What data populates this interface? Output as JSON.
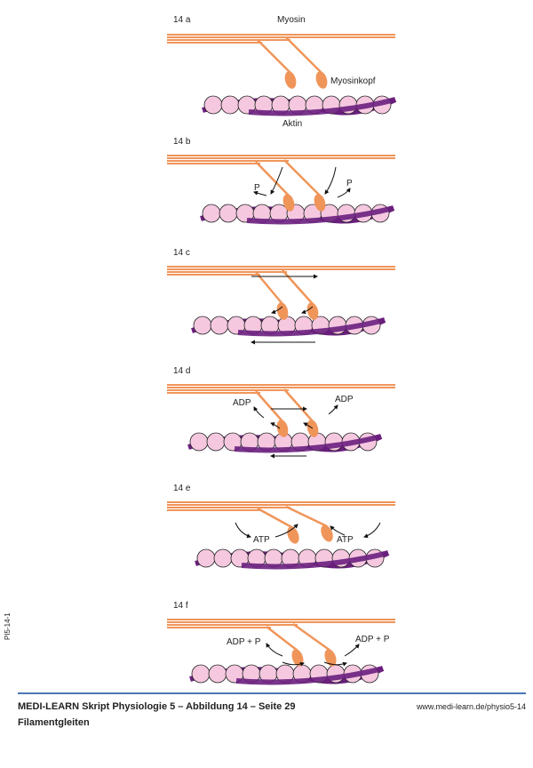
{
  "figure": {
    "colors": {
      "myosin": "#f0955a",
      "actin_bead": "#f5c8e0",
      "actin_strand": "#6a1f7e",
      "rule": "#4a76b4"
    },
    "panels": [
      {
        "id": "14 a",
        "labels": {
          "top": "Myosin",
          "head": "Myosinkopf",
          "actin": "Aktin"
        }
      },
      {
        "id": "14 b",
        "labels": {
          "left": "P",
          "right": "P"
        }
      },
      {
        "id": "14 c",
        "labels": {}
      },
      {
        "id": "14 d",
        "labels": {
          "left": "ADP",
          "right": "ADP"
        }
      },
      {
        "id": "14 e",
        "labels": {
          "left": "ATP",
          "right": "ATP"
        }
      },
      {
        "id": "14 f",
        "labels": {
          "left": "ADP + P",
          "right": "ADP + P"
        }
      }
    ],
    "side_code": "PI5-14-1"
  },
  "footer": {
    "title": "MEDI-LEARN Skript Physiologie 5 – Abbildung 14 – Seite 29",
    "url": "www.medi-learn.de/physio5-14",
    "caption": "Filamentgleiten"
  }
}
